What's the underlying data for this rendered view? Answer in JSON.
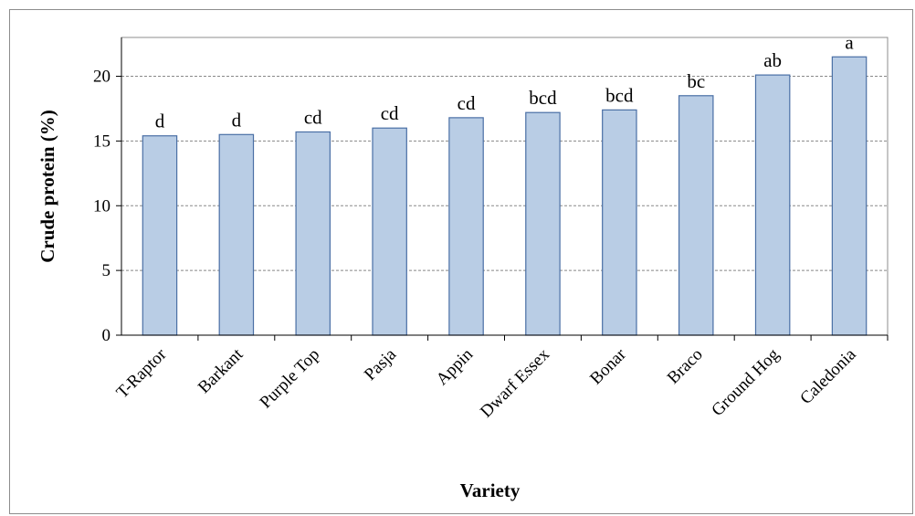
{
  "chart_data": {
    "type": "bar",
    "categories": [
      "T-Raptor",
      "Barkant",
      "Purple Top",
      "Pasja",
      "Appin",
      "Dwarf Essex",
      "Bonar",
      "Braco",
      "Ground Hog",
      "Caledonia"
    ],
    "values": [
      15.4,
      15.5,
      15.7,
      16.0,
      16.8,
      17.2,
      17.4,
      18.5,
      20.1,
      21.5
    ],
    "data_labels": [
      "d",
      "d",
      "cd",
      "cd",
      "cd",
      "bcd",
      "bcd",
      "bc",
      "ab",
      "a"
    ],
    "xlabel": "Variety",
    "ylabel": "Crude protein (%)",
    "ylim": [
      0,
      23
    ],
    "yticks": [
      0,
      5,
      10,
      15,
      20
    ],
    "grid": true,
    "colors": {
      "bar_fill": "#b9cde5",
      "bar_stroke": "#4a6fa5",
      "grid": "#888888"
    }
  }
}
